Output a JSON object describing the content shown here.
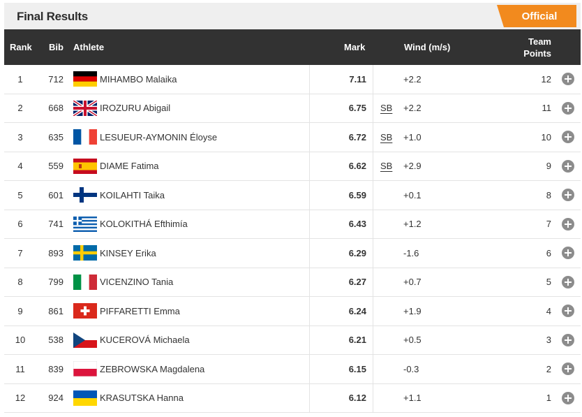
{
  "header": {
    "title": "Final Results",
    "status": "Official"
  },
  "columns": {
    "rank": "Rank",
    "bib": "Bib",
    "athlete": "Athlete",
    "mark": "Mark",
    "wind": "Wind (m/s)",
    "points_line1": "Team",
    "points_line2": "Points"
  },
  "colors": {
    "accent": "#f28a1e",
    "header_bg": "#323232"
  },
  "rows": [
    {
      "rank": "1",
      "bib": "712",
      "flag": "germany-flag-icon",
      "name": "MIHAMBO Malaika",
      "mark": "7.11",
      "sb": "",
      "wind": "+2.2",
      "points": "12"
    },
    {
      "rank": "2",
      "bib": "668",
      "flag": "united-kingdom-flag-icon",
      "name": "IROZURU Abigail",
      "mark": "6.75",
      "sb": "SB",
      "wind": "+2.2",
      "points": "11"
    },
    {
      "rank": "3",
      "bib": "635",
      "flag": "france-flag-icon",
      "name": "LESUEUR-AYMONIN Éloyse",
      "mark": "6.72",
      "sb": "SB",
      "wind": "+1.0",
      "points": "10"
    },
    {
      "rank": "4",
      "bib": "559",
      "flag": "spain-flag-icon",
      "name": "DIAME Fatima",
      "mark": "6.62",
      "sb": "SB",
      "wind": "+2.9",
      "points": "9"
    },
    {
      "rank": "5",
      "bib": "601",
      "flag": "finland-flag-icon",
      "name": "KOILAHTI Taika",
      "mark": "6.59",
      "sb": "",
      "wind": "+0.1",
      "points": "8"
    },
    {
      "rank": "6",
      "bib": "741",
      "flag": "greece-flag-icon",
      "name": "KOLOKITHÁ Efthimía",
      "mark": "6.43",
      "sb": "",
      "wind": "+1.2",
      "points": "7"
    },
    {
      "rank": "7",
      "bib": "893",
      "flag": "sweden-flag-icon",
      "name": "KINSEY Erika",
      "mark": "6.29",
      "sb": "",
      "wind": "-1.6",
      "points": "6"
    },
    {
      "rank": "8",
      "bib": "799",
      "flag": "italy-flag-icon",
      "name": "VICENZINO Tania",
      "mark": "6.27",
      "sb": "",
      "wind": "+0.7",
      "points": "5"
    },
    {
      "rank": "9",
      "bib": "861",
      "flag": "switzerland-flag-icon",
      "name": "PIFFARETTI Emma",
      "mark": "6.24",
      "sb": "",
      "wind": "+1.9",
      "points": "4"
    },
    {
      "rank": "10",
      "bib": "538",
      "flag": "czechia-flag-icon",
      "name": "KUCEROVÁ Michaela",
      "mark": "6.21",
      "sb": "",
      "wind": "+0.5",
      "points": "3"
    },
    {
      "rank": "11",
      "bib": "839",
      "flag": "poland-flag-icon",
      "name": "ZEBROWSKA Magdalena",
      "mark": "6.15",
      "sb": "",
      "wind": "-0.3",
      "points": "2"
    },
    {
      "rank": "12",
      "bib": "924",
      "flag": "ukraine-flag-icon",
      "name": "KRASUTSKA Hanna",
      "mark": "6.12",
      "sb": "",
      "wind": "+1.1",
      "points": "1"
    }
  ]
}
